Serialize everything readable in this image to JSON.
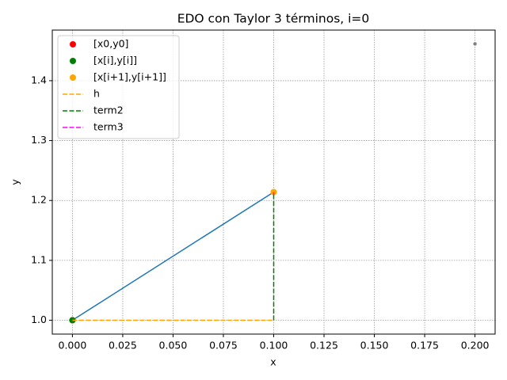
{
  "chart_data": {
    "type": "line",
    "title": "EDO con Taylor 3 términos, i=0",
    "xlabel": "x",
    "ylabel": "y",
    "xlim": [
      -0.01,
      0.21
    ],
    "ylim": [
      0.9769,
      1.4845
    ],
    "xticks": [
      {
        "value": 0,
        "label": "0.000"
      },
      {
        "value": 0.025,
        "label": "0.025"
      },
      {
        "value": 0.05,
        "label": "0.050"
      },
      {
        "value": 0.075,
        "label": "0.075"
      },
      {
        "value": 0.1,
        "label": "0.100"
      },
      {
        "value": 0.125,
        "label": "0.125"
      },
      {
        "value": 0.15,
        "label": "0.150"
      },
      {
        "value": 0.175,
        "label": "0.175"
      },
      {
        "value": 0.2,
        "label": "0.200"
      }
    ],
    "yticks": [
      {
        "value": 1,
        "label": "1.0"
      },
      1.1,
      1.2,
      1.3,
      1.4
    ],
    "grid": true,
    "legend": "upper left",
    "series": [
      {
        "color": "#1f77b4",
        "linestyle": "-",
        "marker": null,
        "x": [
          0,
          0.1
        ],
        "values": [
          1.0,
          1.214
        ]
      },
      {
        "color": "gray",
        "linestyle": "none",
        "marker": ".",
        "x": [
          0.2
        ],
        "values": [
          1.4614
        ]
      },
      {
        "name": "[x0,y0]",
        "color": "red",
        "linestyle": "none",
        "marker": "o",
        "x": [
          0
        ],
        "values": [
          1.0
        ]
      },
      {
        "name": "[x[i],y[i]]",
        "color": "green",
        "linestyle": "none",
        "marker": "o",
        "x": [
          0
        ],
        "values": [
          1.0
        ]
      },
      {
        "name": "[x[i+1],y[i+1]]",
        "color": "orange",
        "linestyle": "none",
        "marker": "o",
        "x": [
          0.1
        ],
        "values": [
          1.214
        ]
      },
      {
        "name": "h",
        "color": "orange",
        "linestyle": "--",
        "marker": null,
        "x": [
          0,
          0.1
        ],
        "values": [
          1.0,
          1.0
        ]
      },
      {
        "name": "term2",
        "color": "green",
        "linestyle": "--",
        "marker": null,
        "x": [
          0.1,
          0.1
        ],
        "values": [
          1.0,
          1.21
        ]
      },
      {
        "name": "term3",
        "color": "magenta",
        "linestyle": "--",
        "marker": null,
        "x": [
          0.1,
          0.1
        ],
        "values": [
          1.21,
          1.214
        ]
      }
    ]
  }
}
